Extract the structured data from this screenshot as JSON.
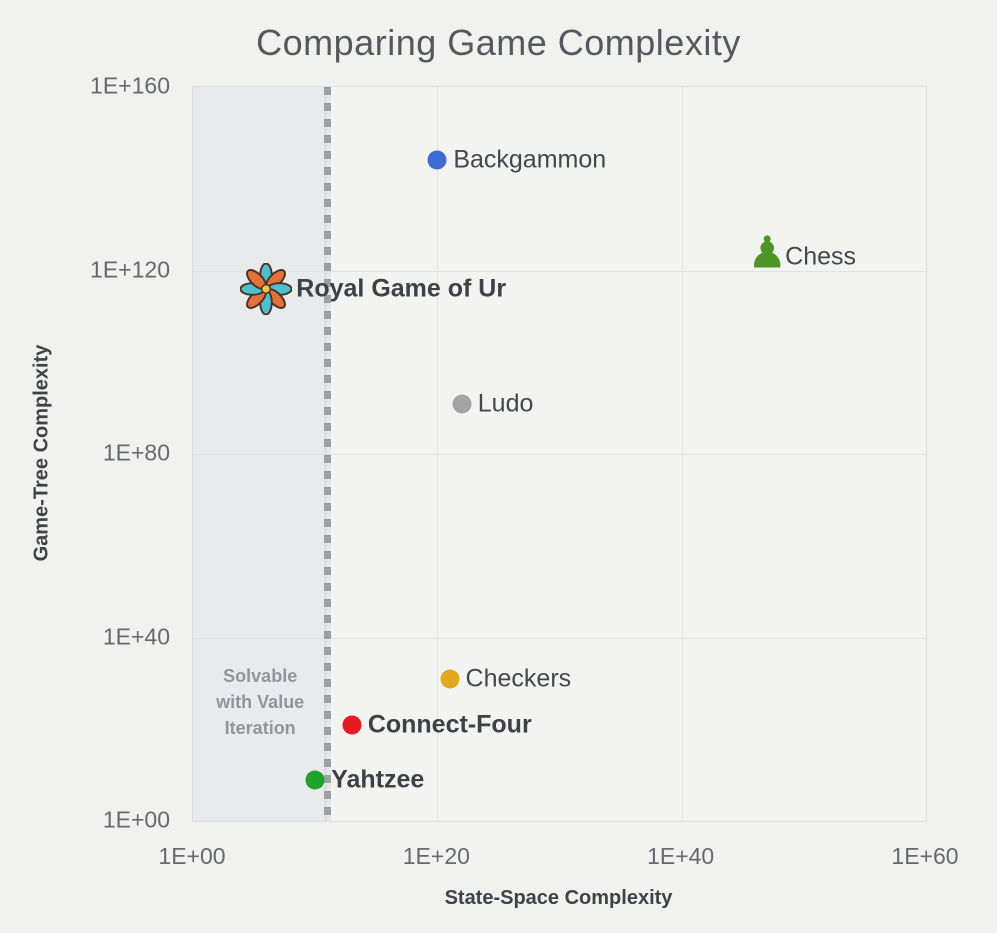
{
  "title": "Comparing Game Complexity",
  "chart_data": {
    "type": "scatter",
    "title": "Comparing Game Complexity",
    "xlabel": "State-Space Complexity",
    "ylabel": "Game-Tree Complexity",
    "x_scale": "log10",
    "y_scale": "log10",
    "x_max_exp": 60,
    "y_max_exp": 160,
    "grid": true,
    "x_ticks": [
      {
        "exp": 0,
        "label": "1E+00"
      },
      {
        "exp": 20,
        "label": "1E+20"
      },
      {
        "exp": 40,
        "label": "1E+40"
      },
      {
        "exp": 60,
        "label": "1E+60"
      }
    ],
    "y_ticks": [
      {
        "exp": 0,
        "label": "1E+00"
      },
      {
        "exp": 40,
        "label": "1E+40"
      },
      {
        "exp": 80,
        "label": "1E+80"
      },
      {
        "exp": 120,
        "label": "1E+120"
      },
      {
        "exp": 160,
        "label": "1E+160"
      }
    ],
    "x_grid_exps": [
      20,
      40
    ],
    "y_grid_exps": [
      40,
      80,
      120
    ],
    "solvable_region": {
      "lines": [
        "Solvable",
        "with Value",
        "Iteration"
      ],
      "boundary_exp": 11,
      "region_fill": "#e8eaec",
      "boundary_color": "#9aa0a4",
      "text_color": "#8f979d"
    },
    "points": [
      {
        "name": "Backgammon",
        "x_exp": 20,
        "y_exp": 144,
        "marker": "dot",
        "color": "#3e6bd0",
        "bold": false
      },
      {
        "name": "Chess",
        "x_exp": 47,
        "y_exp": 123,
        "marker": "chess-pawn",
        "color": "#4e9426",
        "glyph": "♟",
        "bold": false
      },
      {
        "name": "Royal Game of Ur",
        "x_exp": 6,
        "y_exp": 116,
        "marker": "ur-rosette",
        "bold": true,
        "icon_colors": {
          "teal": "#4cc0ce",
          "orange": "#e2713c",
          "outline": "#4a3322",
          "center": "#f3c54b"
        }
      },
      {
        "name": "Ludo",
        "x_exp": 22,
        "y_exp": 91,
        "marker": "dot",
        "color": "#a4a4a4",
        "bold": false
      },
      {
        "name": "Checkers",
        "x_exp": 21,
        "y_exp": 31,
        "marker": "dot",
        "color": "#e1a91b",
        "bold": false
      },
      {
        "name": "Connect-Four",
        "x_exp": 13,
        "y_exp": 21,
        "marker": "dot",
        "color": "#e71a1f",
        "bold": true
      },
      {
        "name": "Yahtzee",
        "x_exp": 10,
        "y_exp": 9,
        "marker": "dot",
        "color": "#1fa32c",
        "bold": true
      }
    ]
  }
}
